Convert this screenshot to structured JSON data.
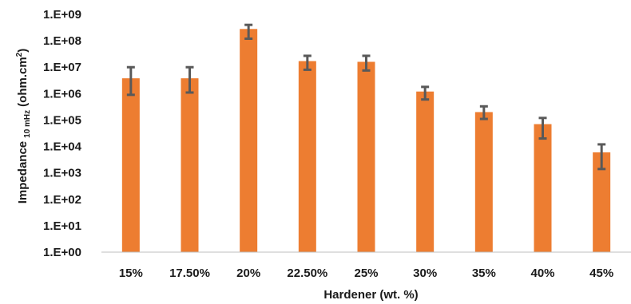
{
  "chart_data": {
    "type": "bar",
    "title": "",
    "xlabel": "Hardener (wt. %)",
    "ylabel": {
      "main": "Impedance",
      "subscript": "10 mHz",
      "unit_open": "(ohm.cm",
      "unit_sup": "2",
      "unit_close": ")"
    },
    "yscale": "log",
    "ylim": [
      1,
      1000000000
    ],
    "yticks": [
      "1.E+00",
      "1.E+01",
      "1.E+02",
      "1.E+03",
      "1.E+04",
      "1.E+05",
      "1.E+06",
      "1.E+07",
      "1.E+08",
      "1.E+09"
    ],
    "categories": [
      "15%",
      "17.50%",
      "20%",
      "22.50%",
      "25%",
      "30%",
      "35%",
      "40%",
      "45%"
    ],
    "values": [
      3800000,
      3800000,
      280000000,
      17000000,
      16000000,
      1200000,
      200000,
      70000,
      6000
    ],
    "error_low": [
      900000,
      1100000,
      120000000,
      8000000,
      7500000,
      600000,
      110000,
      20000,
      1400
    ],
    "error_high": [
      10000000,
      10000000,
      400000000,
      27000000,
      27000000,
      1800000,
      330000,
      120000,
      12000
    ],
    "grid": false,
    "legend": "none",
    "colors": {
      "bar": "#ED7D31",
      "error": "#595959",
      "axis": "#bfbfbf",
      "text": "#1a1a1a"
    }
  }
}
